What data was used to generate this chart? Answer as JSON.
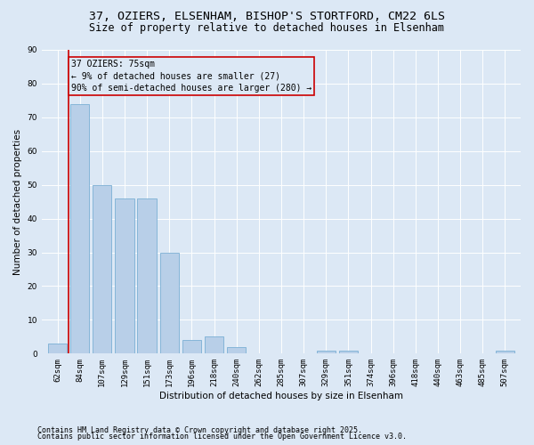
{
  "title_line1": "37, OZIERS, ELSENHAM, BISHOP'S STORTFORD, CM22 6LS",
  "title_line2": "Size of property relative to detached houses in Elsenham",
  "xlabel": "Distribution of detached houses by size in Elsenham",
  "ylabel": "Number of detached properties",
  "categories": [
    "62sqm",
    "84sqm",
    "107sqm",
    "129sqm",
    "151sqm",
    "173sqm",
    "196sqm",
    "218sqm",
    "240sqm",
    "262sqm",
    "285sqm",
    "307sqm",
    "329sqm",
    "351sqm",
    "374sqm",
    "396sqm",
    "418sqm",
    "440sqm",
    "463sqm",
    "485sqm",
    "507sqm"
  ],
  "values": [
    3,
    74,
    50,
    46,
    46,
    30,
    4,
    5,
    2,
    0,
    0,
    0,
    1,
    1,
    0,
    0,
    0,
    0,
    0,
    0,
    1
  ],
  "bar_color": "#b8cfe8",
  "bar_edge_color": "#7bafd4",
  "annotation_title": "37 OZIERS: 75sqm",
  "annotation_line2": "← 9% of detached houses are smaller (27)",
  "annotation_line3": "90% of semi-detached houses are larger (280) →",
  "vline_color": "#cc0000",
  "box_color": "#cc0000",
  "bg_color": "#dce8f5",
  "ylim": [
    0,
    90
  ],
  "yticks": [
    0,
    10,
    20,
    30,
    40,
    50,
    60,
    70,
    80,
    90
  ],
  "footnote1": "Contains HM Land Registry data © Crown copyright and database right 2025.",
  "footnote2": "Contains public sector information licensed under the Open Government Licence v3.0.",
  "title_fontsize": 9.5,
  "subtitle_fontsize": 8.5,
  "axis_label_fontsize": 7.5,
  "tick_fontsize": 6.5,
  "annotation_fontsize": 7,
  "footnote_fontsize": 6
}
